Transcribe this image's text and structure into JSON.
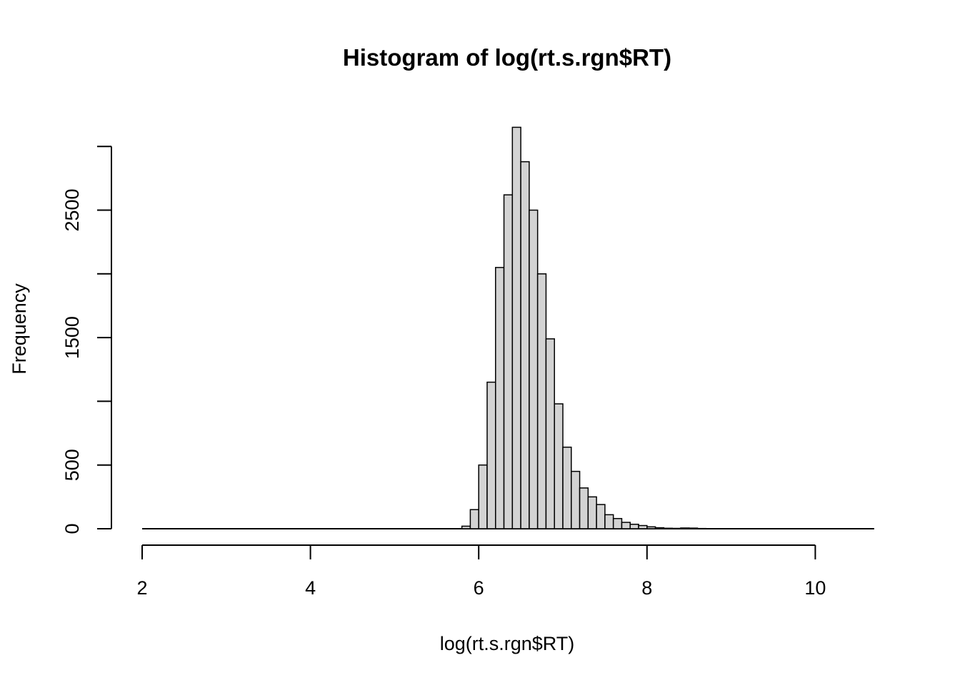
{
  "chart_data": {
    "type": "bar",
    "title": "Histogram of log(rt.s.rgn$RT)",
    "xlabel": "log(rt.s.rgn$RT)",
    "ylabel": "Frequency",
    "xlim": [
      2,
      10.7
    ],
    "ylim": [
      0,
      3150
    ],
    "x_ticks": [
      2,
      4,
      6,
      8,
      10
    ],
    "y_ticks": [
      0,
      500,
      1000,
      1500,
      2000,
      2500,
      3000
    ],
    "y_tick_labels": [
      "0",
      "500",
      "",
      "1500",
      "",
      "2500",
      ""
    ],
    "bin_width": 0.1,
    "bin_start": 2.0,
    "bin_end": 10.7,
    "bins": [
      {
        "x0": 5.8,
        "x1": 5.9,
        "value": 20
      },
      {
        "x0": 5.9,
        "x1": 6.0,
        "value": 150
      },
      {
        "x0": 6.0,
        "x1": 6.1,
        "value": 500
      },
      {
        "x0": 6.1,
        "x1": 6.2,
        "value": 1150
      },
      {
        "x0": 6.2,
        "x1": 6.3,
        "value": 2050
      },
      {
        "x0": 6.3,
        "x1": 6.4,
        "value": 2620
      },
      {
        "x0": 6.4,
        "x1": 6.5,
        "value": 3150
      },
      {
        "x0": 6.5,
        "x1": 6.6,
        "value": 2880
      },
      {
        "x0": 6.6,
        "x1": 6.7,
        "value": 2500
      },
      {
        "x0": 6.7,
        "x1": 6.8,
        "value": 2000
      },
      {
        "x0": 6.8,
        "x1": 6.9,
        "value": 1490
      },
      {
        "x0": 6.9,
        "x1": 7.0,
        "value": 980
      },
      {
        "x0": 7.0,
        "x1": 7.1,
        "value": 640
      },
      {
        "x0": 7.1,
        "x1": 7.2,
        "value": 450
      },
      {
        "x0": 7.2,
        "x1": 7.3,
        "value": 320
      },
      {
        "x0": 7.3,
        "x1": 7.4,
        "value": 250
      },
      {
        "x0": 7.4,
        "x1": 7.5,
        "value": 190
      },
      {
        "x0": 7.5,
        "x1": 7.6,
        "value": 110
      },
      {
        "x0": 7.6,
        "x1": 7.7,
        "value": 80
      },
      {
        "x0": 7.7,
        "x1": 7.8,
        "value": 50
      },
      {
        "x0": 7.8,
        "x1": 7.9,
        "value": 35
      },
      {
        "x0": 7.9,
        "x1": 8.0,
        "value": 25
      },
      {
        "x0": 8.0,
        "x1": 8.1,
        "value": 15
      },
      {
        "x0": 8.1,
        "x1": 8.2,
        "value": 8
      },
      {
        "x0": 8.2,
        "x1": 8.3,
        "value": 4
      },
      {
        "x0": 8.3,
        "x1": 8.4,
        "value": 3
      },
      {
        "x0": 8.4,
        "x1": 8.5,
        "value": 6
      },
      {
        "x0": 8.5,
        "x1": 8.6,
        "value": 5
      },
      {
        "x0": 8.6,
        "x1": 8.7,
        "value": 2
      }
    ],
    "bar_fill": "#d3d3d3",
    "bar_stroke": "#000000",
    "grid": false
  }
}
